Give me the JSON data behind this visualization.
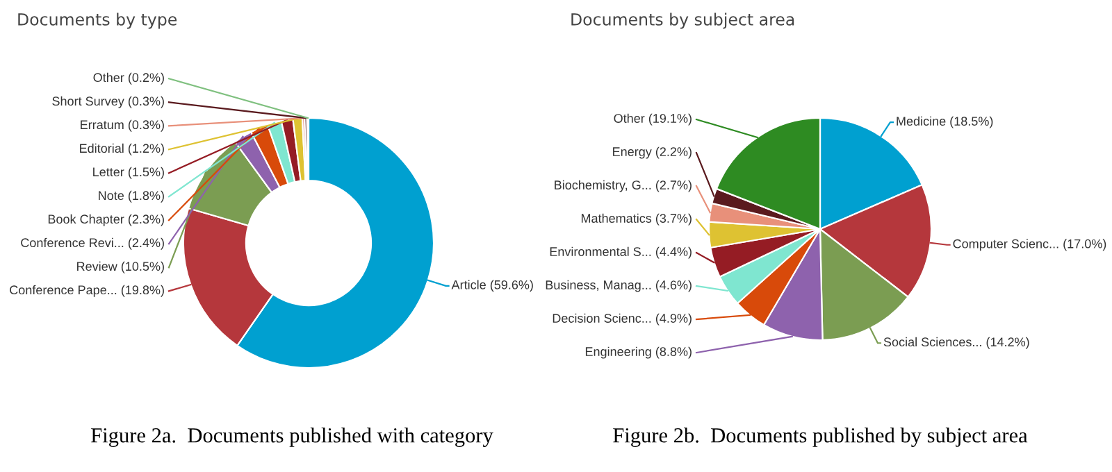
{
  "chart_data": [
    {
      "type": "donut",
      "title": "Documents by type",
      "categories": [
        "Article",
        "Conference Pape...",
        "Review",
        "Conference Revi...",
        "Book Chapter",
        "Note",
        "Letter",
        "Editorial",
        "Erratum",
        "Short Survey",
        "Other"
      ],
      "values": [
        59.6,
        19.8,
        10.5,
        2.4,
        2.3,
        1.8,
        1.5,
        1.2,
        0.3,
        0.3,
        0.2
      ],
      "value_labels": [
        "(59.6%)",
        "(19.8%)",
        "(10.5%)",
        "(2.4%)",
        "(2.3%)",
        "(1.8%)",
        "(1.5%)",
        "(1.2%)",
        "(0.3%)",
        "(0.3%)",
        "(0.2%)"
      ],
      "colors": [
        "#00a0d0",
        "#b5373c",
        "#7b9d52",
        "#8e62ad",
        "#d84a0a",
        "#7fe6d0",
        "#951c24",
        "#dec232",
        "#e8907a",
        "#5a1a1e",
        "#7fc07f"
      ],
      "annotations": [
        "Figure 2a.  Documents published with category"
      ]
    },
    {
      "type": "pie",
      "title": "Documents by subject area",
      "categories": [
        "Medicine",
        "Computer Scienc...",
        "Social Sciences...",
        "Engineering",
        "Decision Scienc...",
        "Business, Manag...",
        "Environmental S...",
        "Mathematics",
        "Biochemistry, G...",
        "Energy",
        "Other"
      ],
      "values": [
        18.5,
        17.0,
        14.2,
        8.8,
        4.9,
        4.6,
        4.4,
        3.7,
        2.7,
        2.2,
        19.1
      ],
      "value_labels": [
        "(18.5%)",
        "(17.0%)",
        "(14.2%)",
        "(8.8%)",
        "(4.9%)",
        "(4.6%)",
        "(4.4%)",
        "(3.7%)",
        "(2.7%)",
        "(2.2%)",
        "(19.1%)"
      ],
      "colors": [
        "#00a0d0",
        "#b5373c",
        "#7b9d52",
        "#8e62ad",
        "#d84a0a",
        "#7fe6d0",
        "#951c24",
        "#dec232",
        "#e8907a",
        "#5a1a1e",
        "#2e8b22"
      ],
      "annotations": [
        "Figure 2b.  Documents published by subject area"
      ]
    }
  ]
}
